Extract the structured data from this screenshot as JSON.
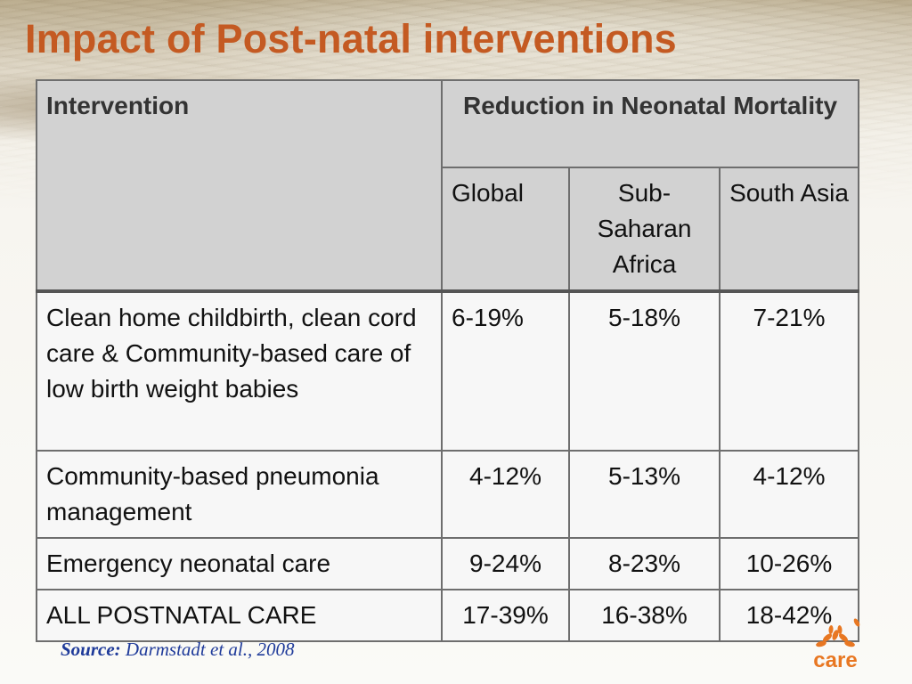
{
  "slide": {
    "title": "Impact of Post-natal interventions"
  },
  "table": {
    "intervention_header": "Intervention",
    "group_header": "Reduction in Neonatal Mortality",
    "region_headers": [
      "Global",
      "Sub-Saharan Africa",
      "South Asia"
    ],
    "rows": [
      {
        "intervention": "Clean home childbirth, clean cord care  & Community-based care of low birth weight babies",
        "global": "6-19%",
        "ssa": "5-18%",
        "south_asia": "7-21%"
      },
      {
        "intervention": "Community-based pneumonia management",
        "global": "4-12%",
        "ssa": "5-13%",
        "south_asia": "4-12%"
      },
      {
        "intervention": "Emergency neonatal care",
        "global": "9-24%",
        "ssa": "8-23%",
        "south_asia": "10-26%"
      },
      {
        "intervention": "ALL POSTNATAL CARE",
        "global": "17-39%",
        "ssa": "16-38%",
        "south_asia": "18-42%"
      }
    ]
  },
  "source": {
    "label": "Source:",
    "citation": "Darmstadt et al., 2008"
  },
  "logo": {
    "text": "care",
    "icon": "care-logo-icon",
    "brand_color": "#e87722"
  },
  "colors": {
    "title": "#c45a22",
    "header_bg": "#d2d2d2",
    "source_text": "#1f3b9a"
  }
}
